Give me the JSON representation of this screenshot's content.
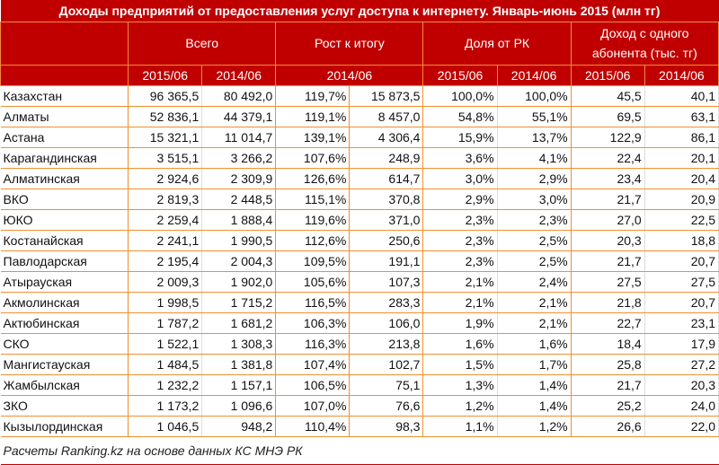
{
  "title": "Доходы предприятий от предоставления услуг доступа к интернету. Январь-июнь 2015 (млн тг)",
  "groups": [
    "Всего",
    "Рост к итогу",
    "Доля от РК",
    "Доход с одного абонента (тыс. тг)"
  ],
  "subheaders": [
    "2015/06",
    "2014/06",
    "2014/06",
    "2015/06",
    "2014/06",
    "2015/06",
    "2014/06"
  ],
  "rows": [
    [
      "Казахстан",
      "96 365,5",
      "80 492,0",
      "119,7%",
      "15 873,5",
      "100,0%",
      "100,0%",
      "45,5",
      "40,1"
    ],
    [
      "Алматы",
      "52 836,1",
      "44 379,1",
      "119,1%",
      "8 457,0",
      "54,8%",
      "55,1%",
      "69,5",
      "63,1"
    ],
    [
      "Астана",
      "15 321,1",
      "11 014,7",
      "139,1%",
      "4 306,4",
      "15,9%",
      "13,7%",
      "122,9",
      "86,1"
    ],
    [
      "Карагандинская",
      "3 515,1",
      "3 266,2",
      "107,6%",
      "248,9",
      "3,6%",
      "4,1%",
      "22,4",
      "20,1"
    ],
    [
      "Алматинская",
      "2 924,6",
      "2 309,9",
      "126,6%",
      "614,7",
      "3,0%",
      "2,9%",
      "23,4",
      "20,4"
    ],
    [
      "ВКО",
      "2 819,3",
      "2 448,5",
      "115,1%",
      "370,8",
      "2,9%",
      "3,0%",
      "21,7",
      "20,9"
    ],
    [
      "ЮКО",
      "2 259,4",
      "1 888,4",
      "119,6%",
      "371,0",
      "2,3%",
      "2,3%",
      "27,0",
      "22,5"
    ],
    [
      "Костанайская",
      "2 241,1",
      "1 990,5",
      "112,6%",
      "250,6",
      "2,3%",
      "2,5%",
      "20,3",
      "18,8"
    ],
    [
      "Павлодарская",
      "2 195,4",
      "2 004,3",
      "109,5%",
      "191,1",
      "2,3%",
      "2,5%",
      "21,7",
      "20,7"
    ],
    [
      "Атырауская",
      "2 009,3",
      "1 902,0",
      "105,6%",
      "107,3",
      "2,1%",
      "2,4%",
      "27,5",
      "27,5"
    ],
    [
      "Акмолинская",
      "1 998,5",
      "1 715,2",
      "116,5%",
      "283,3",
      "2,1%",
      "2,1%",
      "21,8",
      "20,7"
    ],
    [
      "Актюбинская",
      "1 787,2",
      "1 681,2",
      "106,3%",
      "106,0",
      "1,9%",
      "2,1%",
      "22,7",
      "23,1"
    ],
    [
      "СКО",
      "1 522,1",
      "1 308,3",
      "116,3%",
      "213,8",
      "1,6%",
      "1,6%",
      "18,4",
      "17,9"
    ],
    [
      "Мангистауская",
      "1 484,5",
      "1 381,8",
      "107,4%",
      "102,7",
      "1,5%",
      "1,7%",
      "25,8",
      "27,2"
    ],
    [
      "Жамбылская",
      "1 232,2",
      "1 157,1",
      "106,5%",
      "75,1",
      "1,3%",
      "1,4%",
      "21,7",
      "20,3"
    ],
    [
      "ЗКО",
      "1 173,2",
      "1 096,6",
      "107,0%",
      "76,6",
      "1,2%",
      "1,4%",
      "25,2",
      "24,0"
    ],
    [
      "Кызылординская",
      "1 046,5",
      "948,2",
      "110,4%",
      "98,3",
      "1,1%",
      "1,2%",
      "26,6",
      "22,0"
    ]
  ],
  "footer": "Расчеты Ranking.kz на основе данных КС МНЭ РК"
}
